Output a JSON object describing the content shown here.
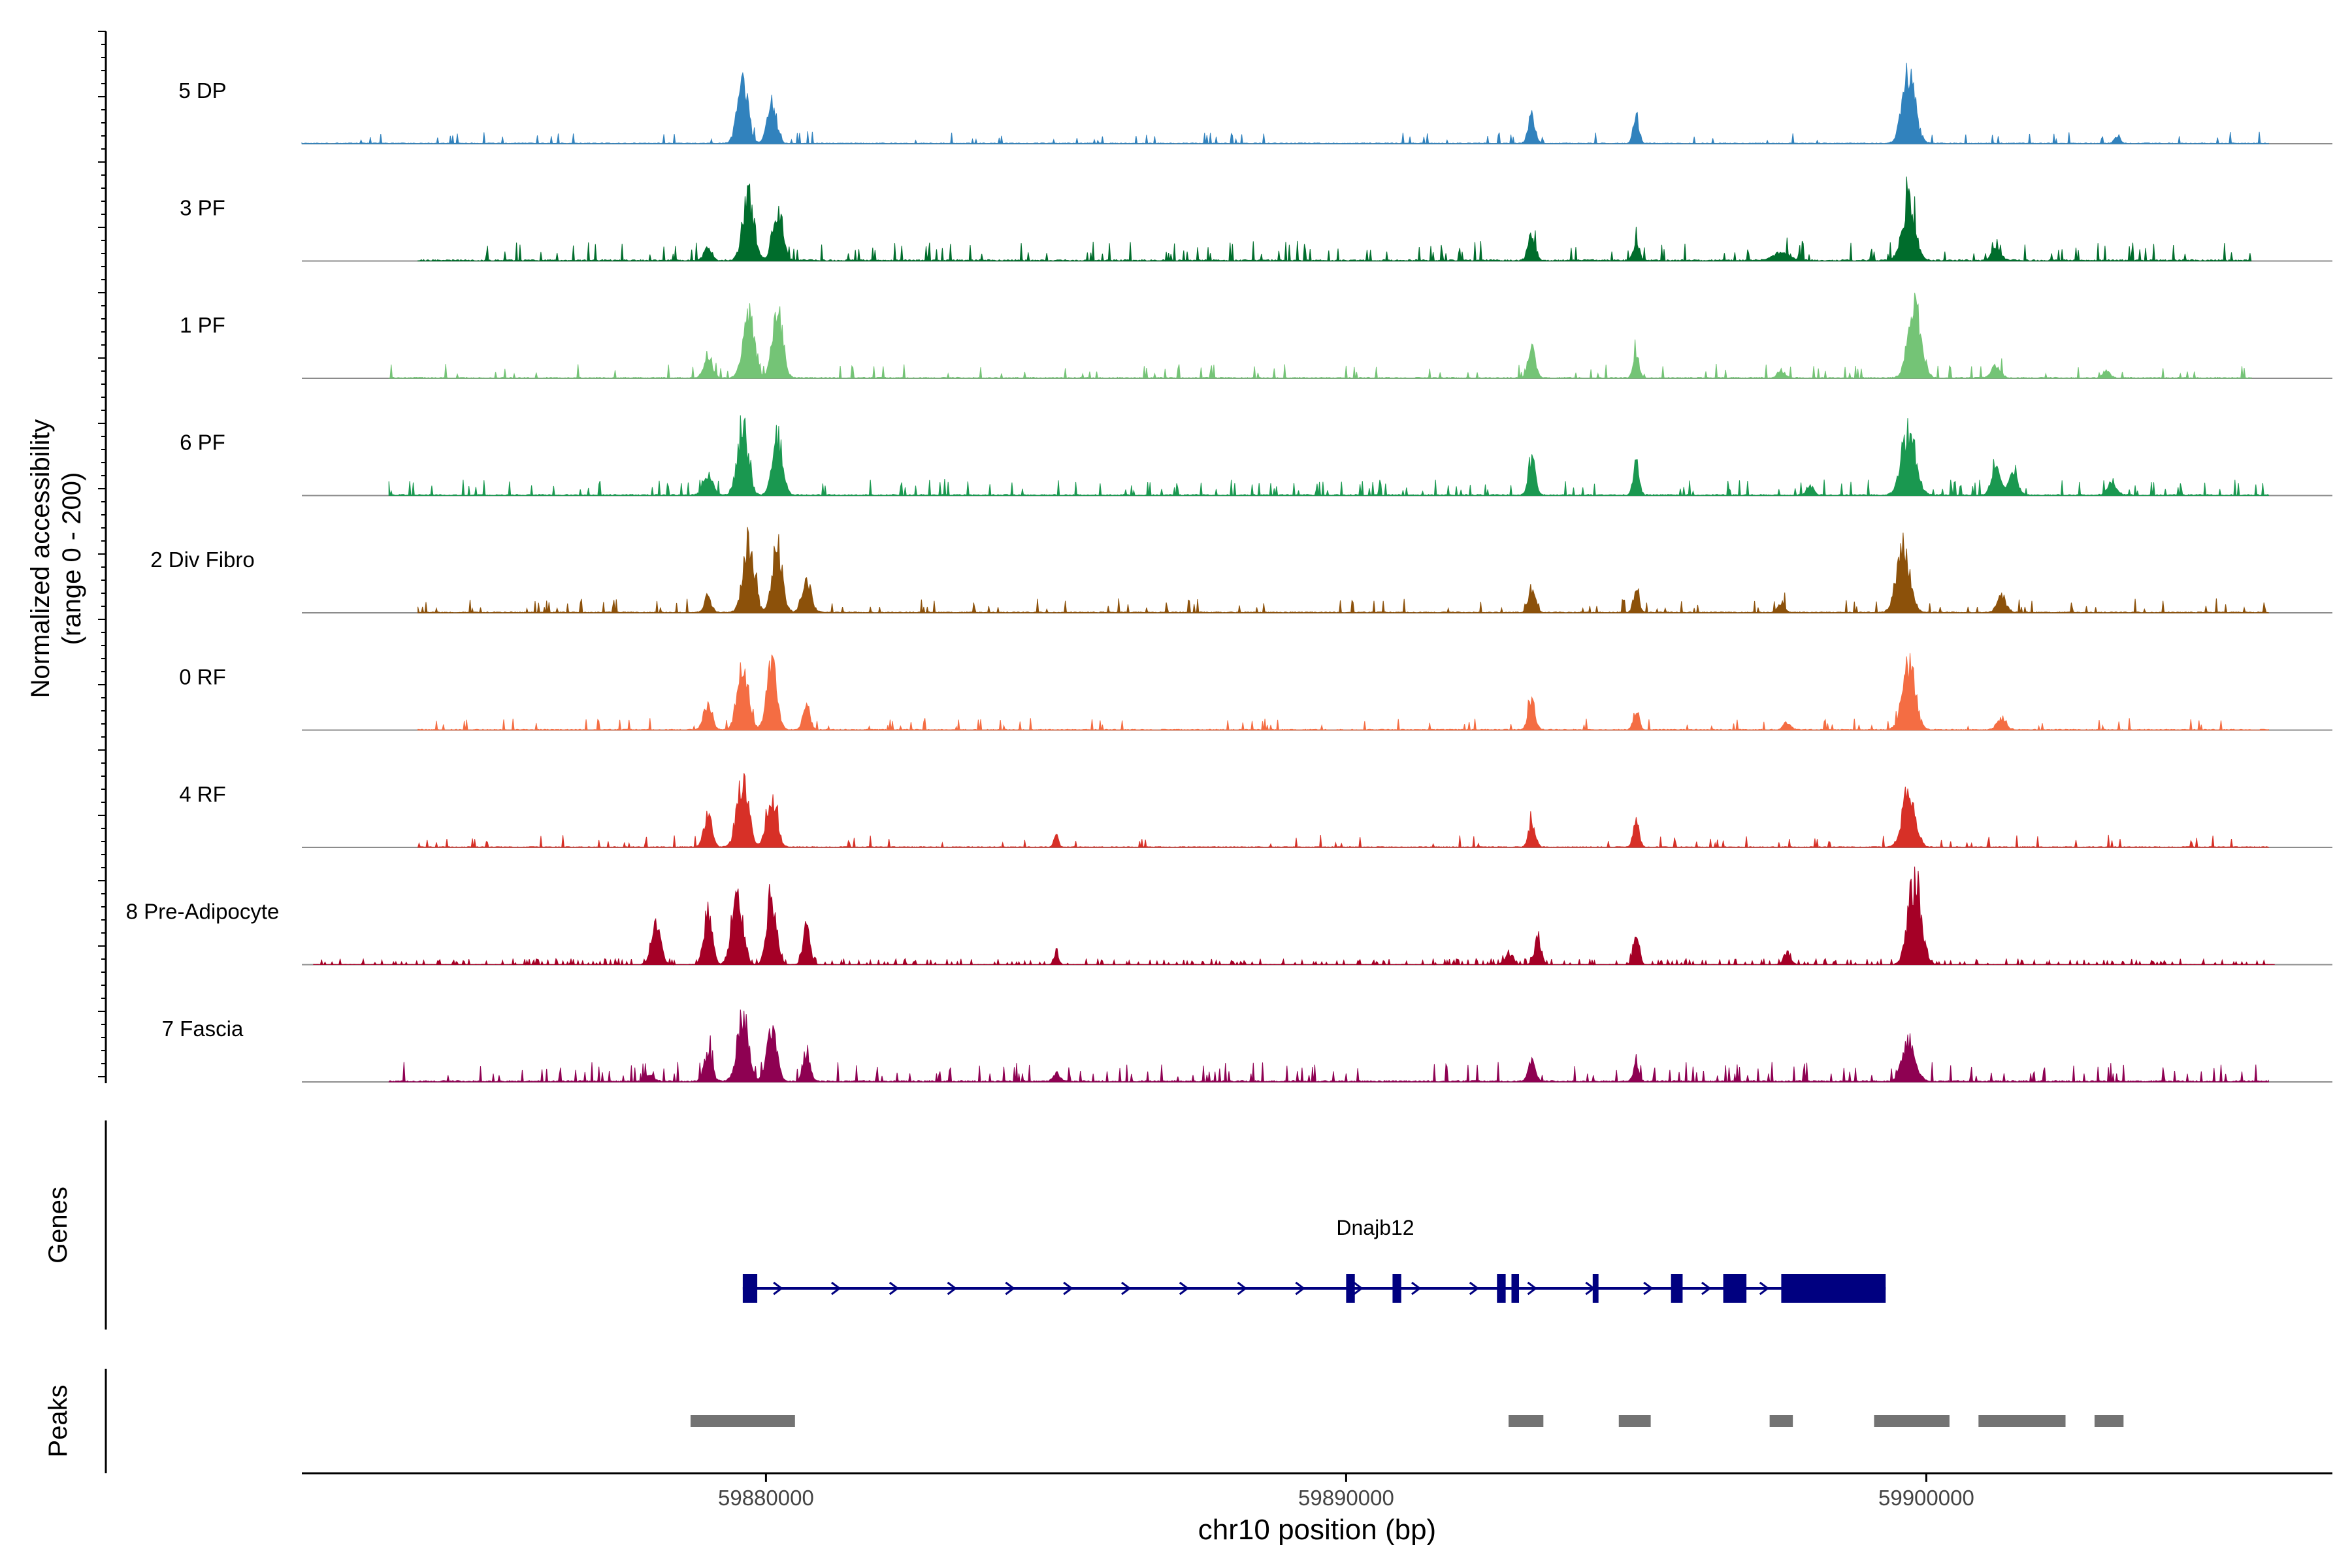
{
  "chart_data": {
    "type": "area",
    "title": "",
    "xlabel": "chr10 position (bp)",
    "ylabel": "Normalized accessibility",
    "ylabel_sub": "(range 0 - 200)",
    "ylim": [
      0,
      200
    ],
    "xlim": [
      59872000,
      59907000
    ],
    "x_ticks": [
      {
        "value": 59880000,
        "label": "59880000"
      },
      {
        "value": 59890000,
        "label": "59890000"
      },
      {
        "value": 59900000,
        "label": "59900000"
      }
    ],
    "track_labels": {
      "genes": "Genes",
      "peaks": "Peaks"
    },
    "series": [
      {
        "name": "5 DP",
        "color": "#3182BD",
        "peaks": [
          [
            59879600,
            160,
            90
          ],
          [
            59880100,
            100,
            80
          ],
          [
            59893200,
            70,
            60
          ],
          [
            59895000,
            70,
            50
          ],
          [
            59899700,
            175,
            110
          ],
          [
            59903300,
            20,
            50
          ]
        ],
        "noise": 6,
        "scatter": 5,
        "span": [
          59872000,
          59905900
        ]
      },
      {
        "name": "3 PF",
        "color": "#006D2C",
        "peaks": [
          [
            59879700,
            160,
            95
          ],
          [
            59880200,
            140,
            85
          ],
          [
            59879000,
            40,
            60
          ],
          [
            59893200,
            70,
            60
          ],
          [
            59895000,
            50,
            50
          ],
          [
            59899700,
            150,
            110
          ],
          [
            59901200,
            30,
            80
          ],
          [
            59897500,
            20,
            150
          ]
        ],
        "noise": 10,
        "scatter": 9,
        "span": [
          59874000,
          59905600
        ]
      },
      {
        "name": "1 PF",
        "color": "#74C476",
        "peaks": [
          [
            59879700,
            170,
            95
          ],
          [
            59880200,
            180,
            85
          ],
          [
            59879000,
            60,
            70
          ],
          [
            59893200,
            80,
            60
          ],
          [
            59895000,
            60,
            50
          ],
          [
            59899800,
            190,
            110
          ],
          [
            59901200,
            30,
            80
          ],
          [
            59903100,
            20,
            60
          ],
          [
            59897500,
            20,
            60
          ]
        ],
        "noise": 7,
        "scatter": 6,
        "span": [
          59873500,
          59905600
        ]
      },
      {
        "name": "6 PF",
        "color": "#1A9850",
        "peaks": [
          [
            59879600,
            160,
            95
          ],
          [
            59880200,
            150,
            85
          ],
          [
            59879000,
            50,
            80
          ],
          [
            59893200,
            90,
            60
          ],
          [
            59895000,
            80,
            50
          ],
          [
            59899700,
            160,
            120
          ],
          [
            59901200,
            60,
            80
          ],
          [
            59901500,
            50,
            80
          ],
          [
            59903200,
            35,
            80
          ],
          [
            59898000,
            25,
            60
          ]
        ],
        "noise": 8,
        "scatter": 8,
        "span": [
          59873500,
          59905900
        ]
      },
      {
        "name": "2 Div Fibro",
        "color": "#8C510A",
        "peaks": [
          [
            59879700,
            185,
            95
          ],
          [
            59880200,
            175,
            85
          ],
          [
            59879000,
            40,
            60
          ],
          [
            59880700,
            80,
            80
          ],
          [
            59893200,
            60,
            60
          ],
          [
            59895000,
            55,
            50
          ],
          [
            59899600,
            180,
            110
          ],
          [
            59901300,
            40,
            80
          ],
          [
            59897500,
            25,
            60
          ]
        ],
        "noise": 7,
        "scatter": 7,
        "span": [
          59874000,
          59905900
        ]
      },
      {
        "name": "0 RF",
        "color": "#F46D43",
        "peaks": [
          [
            59879600,
            170,
            95
          ],
          [
            59880100,
            175,
            85
          ],
          [
            59879000,
            70,
            70
          ],
          [
            59880700,
            60,
            60
          ],
          [
            59893200,
            75,
            60
          ],
          [
            59895000,
            50,
            50
          ],
          [
            59899700,
            160,
            110
          ],
          [
            59901300,
            30,
            80
          ],
          [
            59897600,
            20,
            60
          ]
        ],
        "noise": 6,
        "scatter": 5,
        "span": [
          59874000,
          59905900
        ]
      },
      {
        "name": "4 RF",
        "color": "#D73027",
        "peaks": [
          [
            59879600,
            180,
            95
          ],
          [
            59880100,
            140,
            85
          ],
          [
            59879000,
            80,
            70
          ],
          [
            59893200,
            60,
            60
          ],
          [
            59895000,
            70,
            50
          ],
          [
            59899700,
            140,
            110
          ],
          [
            59885000,
            30,
            40
          ]
        ],
        "noise": 6,
        "scatter": 5,
        "span": [
          59874000,
          59905900
        ]
      },
      {
        "name": "8 Pre-Adipocyte",
        "color": "#A50026",
        "peaks": [
          [
            59879500,
            190,
            90
          ],
          [
            59880100,
            180,
            80
          ],
          [
            59878100,
            100,
            80
          ],
          [
            59879000,
            140,
            70
          ],
          [
            59880700,
            100,
            60
          ],
          [
            59893300,
            60,
            60
          ],
          [
            59895000,
            90,
            50
          ],
          [
            59899800,
            220,
            110
          ],
          [
            59892800,
            30,
            70
          ],
          [
            59897600,
            30,
            60
          ],
          [
            59885000,
            30,
            40
          ]
        ],
        "noise": 3,
        "scatter": 18,
        "span": [
          59872200,
          59906000
        ]
      },
      {
        "name": "7 Fascia",
        "color": "#8E0152",
        "peaks": [
          [
            59879600,
            170,
            95
          ],
          [
            59880100,
            130,
            85
          ],
          [
            59879000,
            70,
            70
          ],
          [
            59880700,
            80,
            60
          ],
          [
            59893200,
            50,
            60
          ],
          [
            59895000,
            40,
            50
          ],
          [
            59899700,
            100,
            110
          ],
          [
            59878000,
            20,
            60
          ],
          [
            59885000,
            20,
            60
          ]
        ],
        "noise": 10,
        "scatter": 10,
        "span": [
          59873500,
          59905900
        ]
      }
    ],
    "gene": {
      "name": "Dnajb12",
      "start": 59879600,
      "end": 59899300,
      "strand": "+",
      "color": "#000080",
      "exons": [
        [
          59879600,
          59879850
        ],
        [
          59890000,
          59890150
        ],
        [
          59890800,
          59890950
        ],
        [
          59892600,
          59892750
        ],
        [
          59892850,
          59892980
        ],
        [
          59894250,
          59894350
        ],
        [
          59895600,
          59895800
        ],
        [
          59896500,
          59896900
        ],
        [
          59897500,
          59899300
        ]
      ]
    },
    "peaks_track": {
      "color": "#737373",
      "regions": [
        [
          59878700,
          59880500
        ],
        [
          59892800,
          59893400
        ],
        [
          59894700,
          59895250
        ],
        [
          59897300,
          59897700
        ],
        [
          59899100,
          59900400
        ],
        [
          59900900,
          59902400
        ],
        [
          59902900,
          59903400
        ]
      ]
    }
  }
}
